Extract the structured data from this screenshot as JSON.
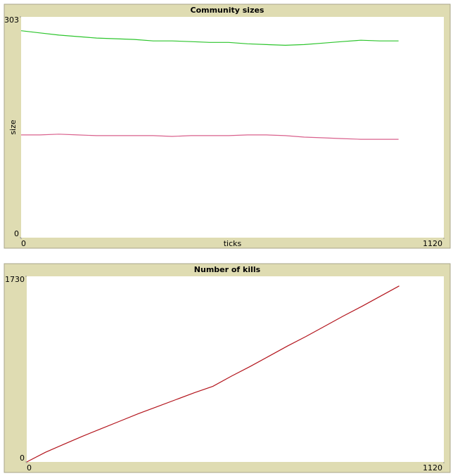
{
  "chart_data": [
    {
      "type": "line",
      "title": "Community sizes",
      "xlabel": "ticks",
      "ylabel": "size",
      "xlim": [
        0,
        1120
      ],
      "ylim": [
        0,
        303
      ],
      "xticks": [
        0,
        1120
      ],
      "yticks": [
        0,
        303
      ],
      "x": [
        0,
        50,
        100,
        150,
        200,
        250,
        300,
        350,
        400,
        450,
        500,
        550,
        600,
        650,
        700,
        750,
        800,
        850,
        900,
        950,
        1000
      ],
      "series": [
        {
          "color": "#2cc52c",
          "values": [
            284,
            281,
            278,
            276,
            274,
            273,
            272,
            270,
            270,
            269,
            268,
            268,
            266,
            265,
            264,
            265,
            267,
            269,
            271,
            270,
            270
          ]
        },
        {
          "color": "#d9608c",
          "values": [
            141,
            141,
            142,
            141,
            140,
            140,
            140,
            140,
            139,
            140,
            140,
            140,
            141,
            141,
            140,
            138,
            137,
            136,
            135,
            135,
            135
          ]
        }
      ]
    },
    {
      "type": "line",
      "title": "Number of kills",
      "xlim": [
        0,
        1120
      ],
      "ylim": [
        0,
        1730
      ],
      "xticks": [
        0,
        1120
      ],
      "yticks": [
        0,
        1730
      ],
      "x": [
        0,
        50,
        100,
        150,
        200,
        250,
        300,
        350,
        400,
        450,
        500,
        550,
        600,
        650,
        700,
        750,
        800,
        850,
        900,
        950,
        1000
      ],
      "series": [
        {
          "color": "#b3141c",
          "values": [
            0,
            90,
            165,
            240,
            310,
            380,
            450,
            515,
            580,
            645,
            705,
            800,
            890,
            985,
            1080,
            1170,
            1265,
            1360,
            1450,
            1545,
            1640
          ]
        }
      ]
    }
  ]
}
